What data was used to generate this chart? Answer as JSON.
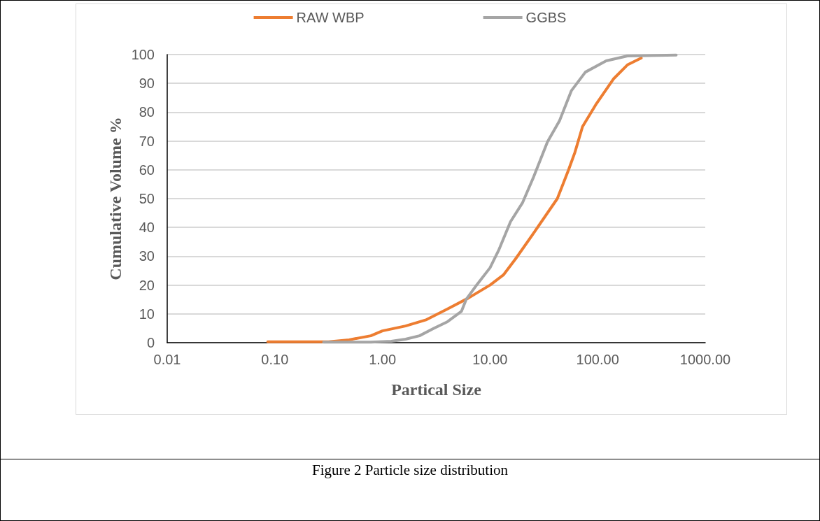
{
  "chart_data": {
    "type": "line",
    "xlabel": "Partical Size",
    "ylabel": "Cumulative Volume %",
    "annotations": [
      "Figure 2 Particle size distribution"
    ],
    "log": "x",
    "grid": "y",
    "legend": "top",
    "marker": "none",
    "line_style": "solid",
    "xlim": [
      0.01,
      1000
    ],
    "ylim": [
      0,
      100
    ],
    "xticks": [
      {
        "value": 0.01,
        "label": "0.01"
      },
      {
        "value": 0.1,
        "label": "0.10"
      },
      {
        "value": 1,
        "label": "1.00"
      },
      {
        "value": 10,
        "label": "10.00"
      },
      {
        "value": 100,
        "label": "100.00"
      },
      {
        "value": 1000,
        "label": "1000.00"
      }
    ],
    "yticks": [
      0,
      10,
      20,
      30,
      40,
      50,
      60,
      70,
      80,
      90,
      100
    ],
    "series": [
      {
        "name": "RAW WBP",
        "color": "#ed7d31",
        "x": [
          0.086,
          0.316,
          0.49,
          0.78,
          1.0,
          1.64,
          2.57,
          4.03,
          6.3,
          10,
          13.3,
          17.2,
          25.4,
          42.2,
          53.7,
          61.4,
          72.4,
          97.6,
          140,
          189,
          254
        ],
        "values": [
          0.3,
          0.3,
          1,
          2.4,
          4.1,
          5.8,
          8,
          11.7,
          15.5,
          20,
          23.5,
          29,
          38,
          50,
          60,
          66,
          75,
          83,
          91.5,
          96.4,
          98.8
        ]
      },
      {
        "name": "GGBS",
        "color": "#a5a5a5",
        "x": [
          0.284,
          0.78,
          1.21,
          1.64,
          2.21,
          2.98,
          4.03,
          5.43,
          6.0,
          7.3,
          10,
          12,
          15.5,
          20,
          25.4,
          34.2,
          44.2,
          56.9,
          76.9,
          120,
          189,
          537
        ],
        "values": [
          0.2,
          0.2,
          0.5,
          1.2,
          2.4,
          4.9,
          7.3,
          10.9,
          15,
          19.4,
          26,
          32,
          42,
          48.5,
          57.5,
          69.7,
          77,
          87.4,
          93.9,
          97.8,
          99.5,
          99.8
        ]
      }
    ]
  }
}
